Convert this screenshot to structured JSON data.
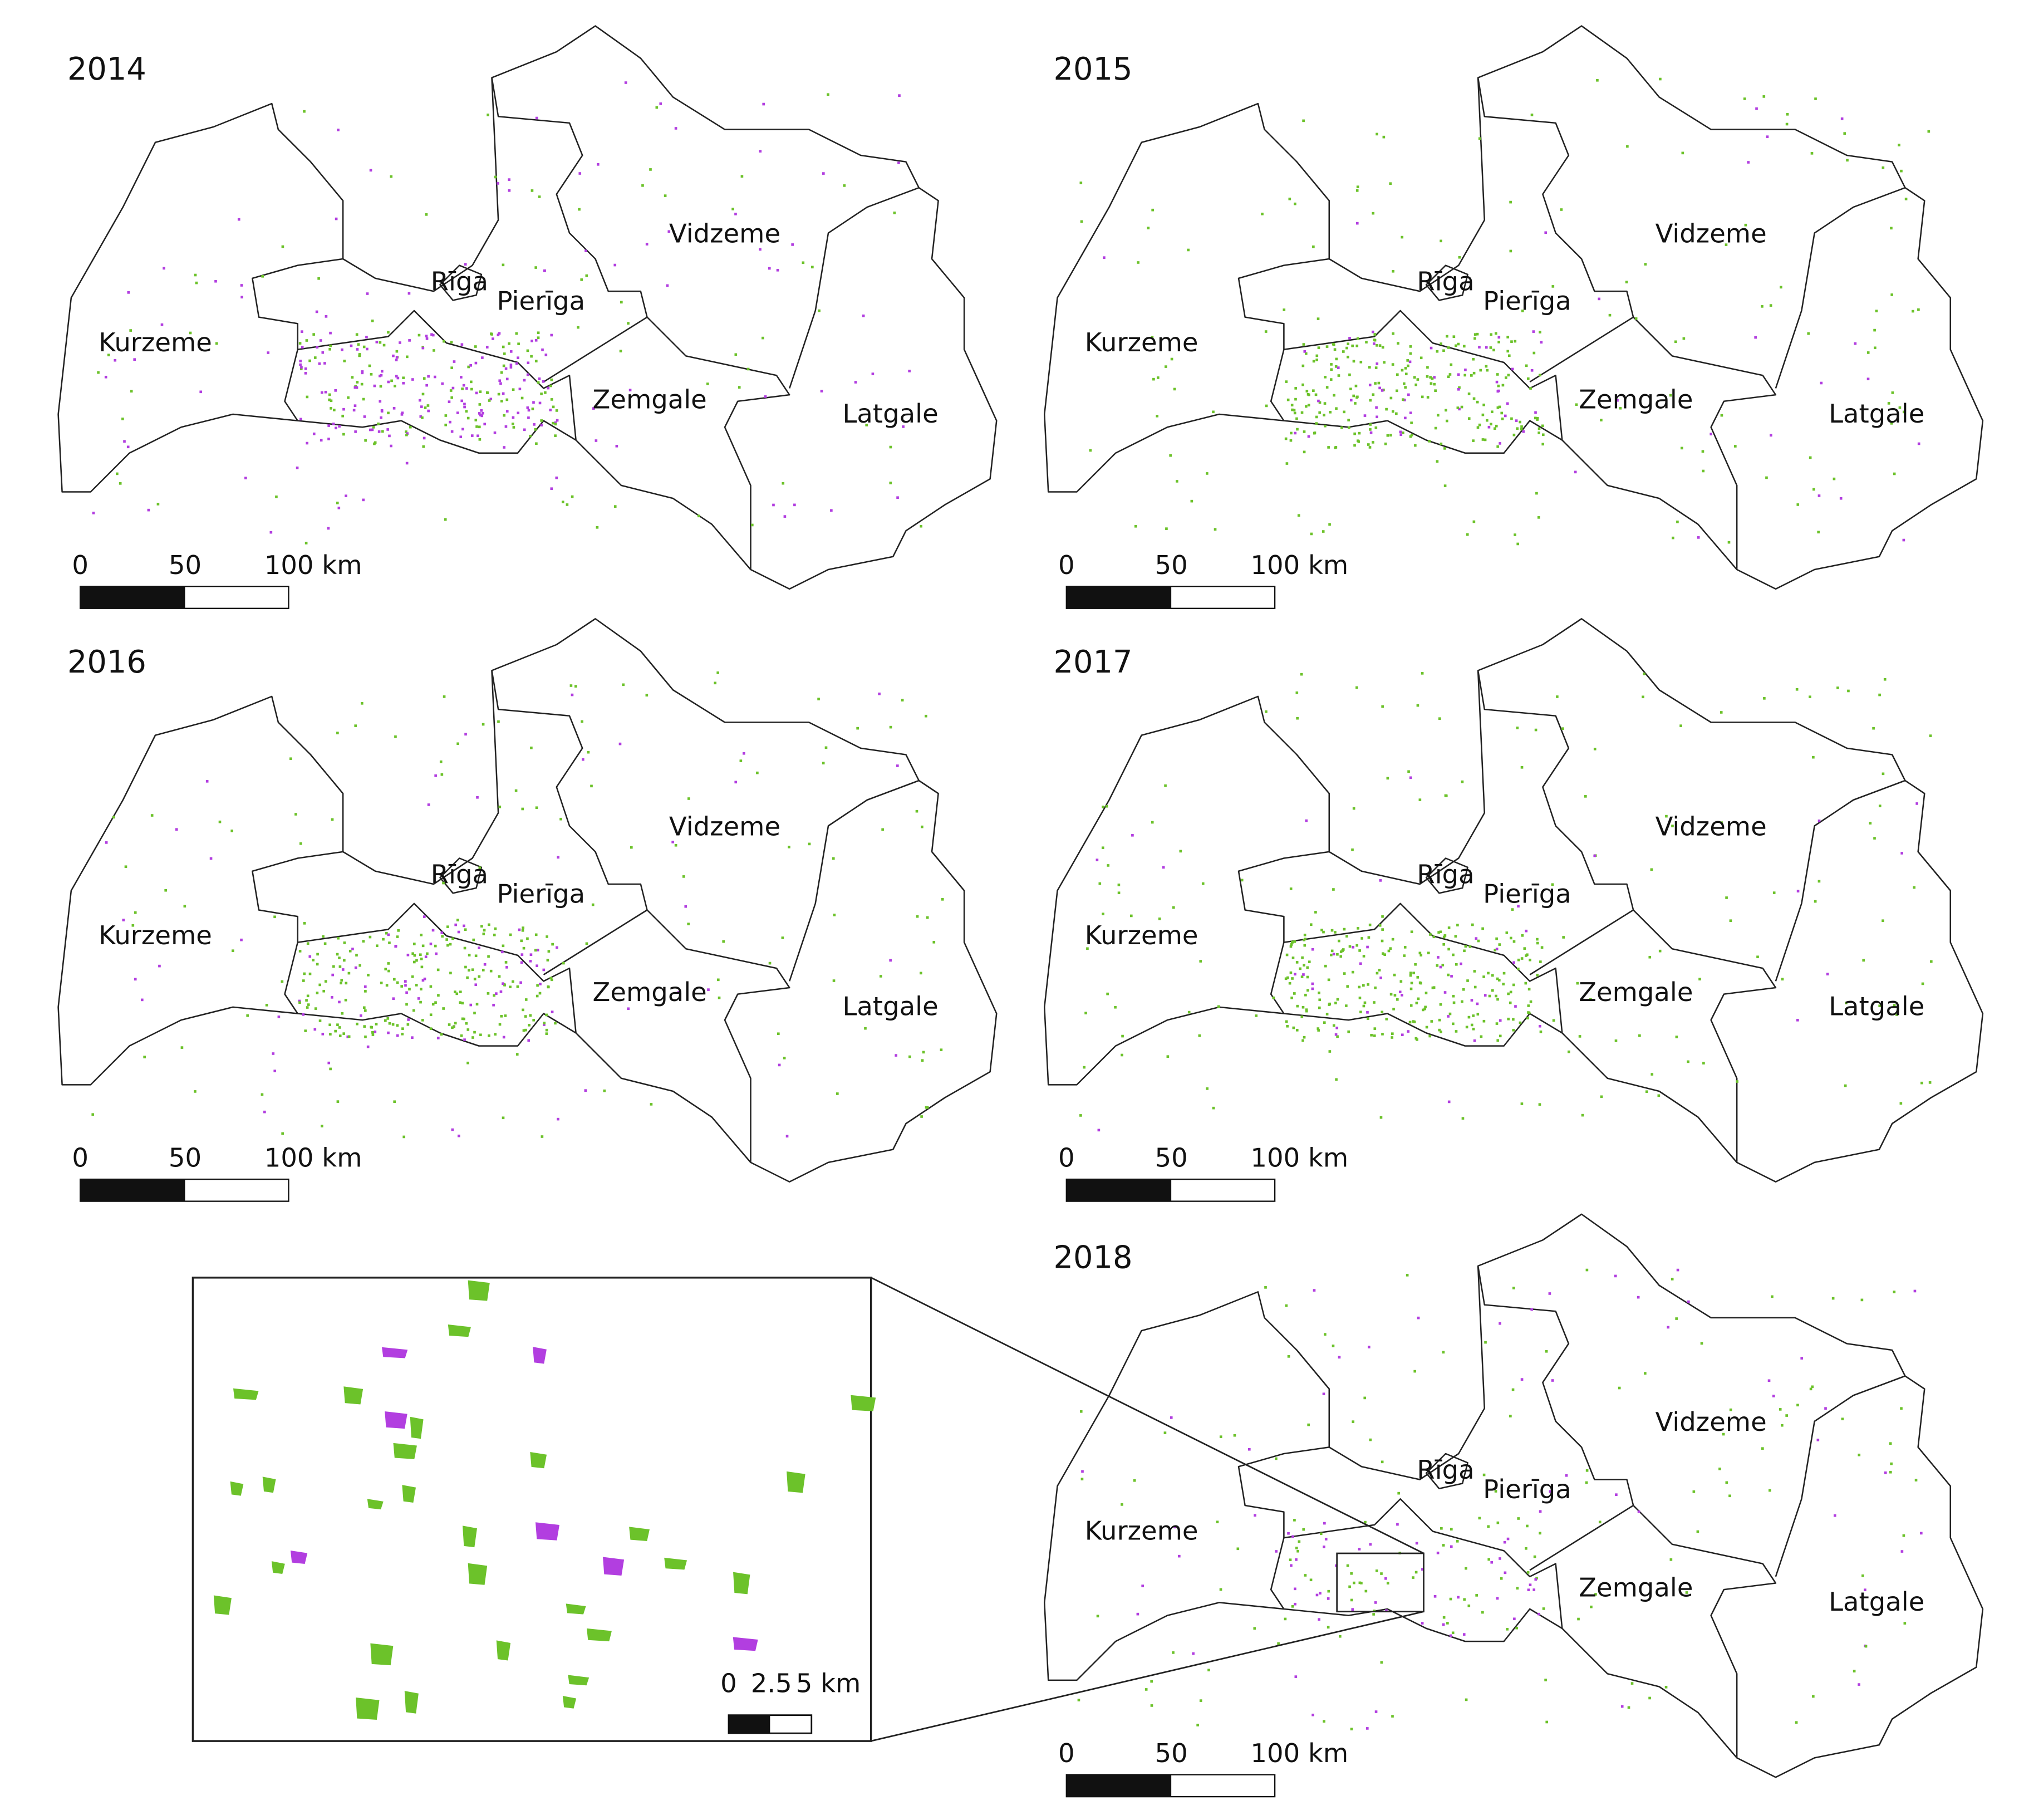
{
  "maps": [
    {
      "year": "2014",
      "regions": [
        "Kurzeme",
        "Rīga",
        "Pierīga",
        "Vidzeme",
        "Zemgale",
        "Latgale"
      ],
      "scale": [
        "0",
        "50",
        "100 km"
      ]
    },
    {
      "year": "2015",
      "regions": [
        "Kurzeme",
        "Rīga",
        "Pierīga",
        "Vidzeme",
        "Zemgale",
        "Latgale"
      ],
      "scale": [
        "0",
        "50",
        "100 km"
      ]
    },
    {
      "year": "2016",
      "regions": [
        "Kurzeme",
        "Rīga",
        "Pierīga",
        "Vidzeme",
        "Zemgale",
        "Latgale"
      ],
      "scale": [
        "0",
        "50",
        "100 km"
      ]
    },
    {
      "year": "2017",
      "regions": [
        "Kurzeme",
        "Rīga",
        "Pierīga",
        "Vidzeme",
        "Zemgale",
        "Latgale"
      ],
      "scale": [
        "0",
        "50",
        "100 km"
      ]
    },
    {
      "year": "2018",
      "regions": [
        "Kurzeme",
        "Rīga",
        "Pierīga",
        "Vidzeme",
        "Zemgale",
        "Latgale"
      ],
      "scale": [
        "0",
        "50",
        "100 km"
      ]
    }
  ],
  "inset": {
    "scale": [
      "0",
      "2.5",
      "5 km"
    ]
  }
}
